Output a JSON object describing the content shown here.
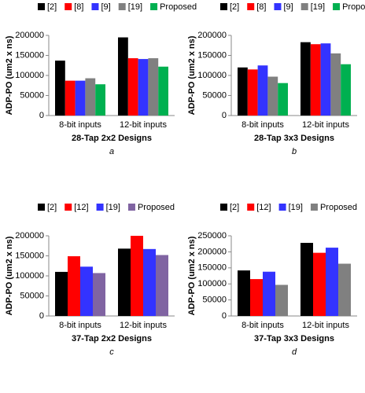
{
  "chart_data": [
    {
      "type": "bar",
      "title": "28-Tap 2x2 Designs",
      "panel_label": "a",
      "y_label": "ADP-PO (um2 x ns)",
      "categories": [
        "8-bit inputs",
        "12-bit inputs"
      ],
      "series": [
        {
          "name": "[2]",
          "color": "#000000",
          "values": [
            137000,
            195000
          ]
        },
        {
          "name": "[8]",
          "color": "#ff0000",
          "values": [
            87000,
            143000
          ]
        },
        {
          "name": "[9]",
          "color": "#3333ff",
          "values": [
            87000,
            141000
          ]
        },
        {
          "name": "[19]",
          "color": "#808080",
          "values": [
            93000,
            143000
          ]
        },
        {
          "name": "Proposed",
          "color": "#00b050",
          "values": [
            78000,
            122000
          ]
        }
      ],
      "ylim": [
        0,
        200000
      ],
      "yticks": [
        0,
        50000,
        100000,
        150000,
        200000
      ]
    },
    {
      "type": "bar",
      "title": "28-Tap 3x3 Designs",
      "panel_label": "b",
      "y_label": "ADP-PO (um2 x ns)",
      "categories": [
        "8-bit inputs",
        "12-bit inputs"
      ],
      "series": [
        {
          "name": "[2]",
          "color": "#000000",
          "values": [
            120000,
            183000
          ]
        },
        {
          "name": "[8]",
          "color": "#ff0000",
          "values": [
            115000,
            178000
          ]
        },
        {
          "name": "[9]",
          "color": "#3333ff",
          "values": [
            125000,
            180000
          ]
        },
        {
          "name": "[19]",
          "color": "#808080",
          "values": [
            97000,
            155000
          ]
        },
        {
          "name": "Proposed",
          "color": "#00b050",
          "values": [
            81000,
            128000
          ]
        }
      ],
      "ylim": [
        0,
        200000
      ],
      "yticks": [
        0,
        50000,
        100000,
        150000,
        200000
      ]
    },
    {
      "type": "bar",
      "title": "37-Tap 2x2 Designs",
      "panel_label": "c",
      "y_label": "ADP-PO (um2 x ns)",
      "categories": [
        "8-bit inputs",
        "12-bit inputs"
      ],
      "series": [
        {
          "name": "[2]",
          "color": "#000000",
          "values": [
            110000,
            168000
          ]
        },
        {
          "name": "[12]",
          "color": "#ff0000",
          "values": [
            149000,
            200000
          ]
        },
        {
          "name": "[19]",
          "color": "#3333ff",
          "values": [
            123000,
            167000
          ]
        },
        {
          "name": "Proposed",
          "color": "#8064a2",
          "values": [
            107000,
            152000
          ]
        }
      ],
      "ylim": [
        0,
        200000
      ],
      "yticks": [
        0,
        50000,
        100000,
        150000,
        200000
      ]
    },
    {
      "type": "bar",
      "title": "37-Tap 3x3 Designs",
      "panel_label": "d",
      "y_label": "ADP-PO (um2 x ns)",
      "categories": [
        "8-bit inputs",
        "12-bit inputs"
      ],
      "series": [
        {
          "name": "[2]",
          "color": "#000000",
          "values": [
            142000,
            228000
          ]
        },
        {
          "name": "[12]",
          "color": "#ff0000",
          "values": [
            115000,
            197000
          ]
        },
        {
          "name": "[19]",
          "color": "#3333ff",
          "values": [
            138000,
            213000
          ]
        },
        {
          "name": "Proposed",
          "color": "#808080",
          "values": [
            97000,
            163000
          ]
        }
      ],
      "ylim": [
        0,
        250000
      ],
      "yticks": [
        0,
        50000,
        100000,
        150000,
        200000,
        250000
      ]
    }
  ]
}
